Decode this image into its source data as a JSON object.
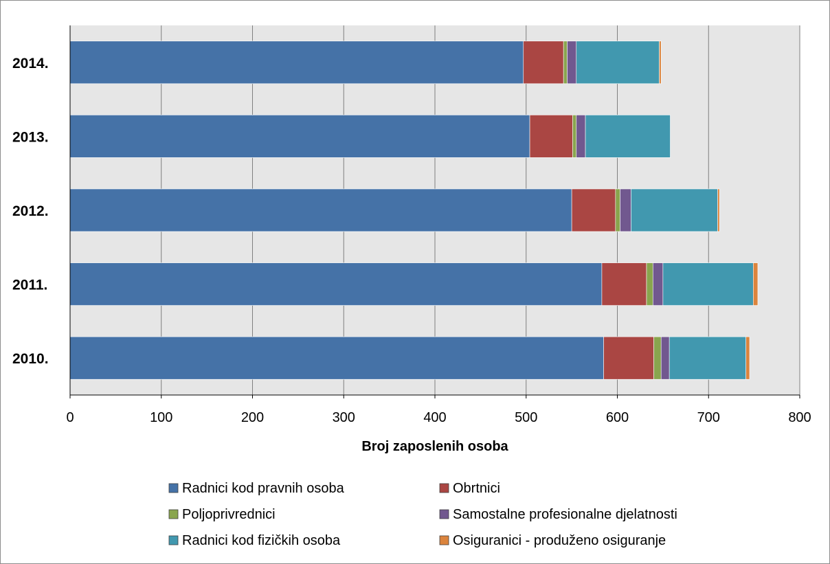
{
  "chart_data": {
    "type": "bar",
    "orientation": "horizontal",
    "stacked": true,
    "categories": [
      "2010.",
      "2011.",
      "2012.",
      "2013.",
      "2014."
    ],
    "series": [
      {
        "name": "Radnici kod pravnih osoba",
        "color": "#4572a7",
        "values": [
          585,
          583,
          550,
          504,
          497
        ]
      },
      {
        "name": "Obrtnici",
        "color": "#aa4643",
        "values": [
          55,
          49,
          48,
          47,
          44
        ]
      },
      {
        "name": "Poljoprivrednici",
        "color": "#89a54e",
        "values": [
          8,
          7,
          5,
          4,
          4
        ]
      },
      {
        "name": "Samostalne profesionalne djelatnosti",
        "color": "#71588f",
        "values": [
          9,
          11,
          12,
          10,
          10
        ]
      },
      {
        "name": "Radnici kod fizičkih osoba",
        "color": "#4198af",
        "values": [
          84,
          99,
          95,
          93,
          91
        ]
      },
      {
        "name": "Osiguranici - produženo osiguranje",
        "color": "#db843d",
        "values": [
          4,
          5,
          2,
          0,
          2
        ]
      }
    ],
    "x_ticks": [
      "0",
      "100",
      "200",
      "300",
      "400",
      "500",
      "600",
      "700",
      "800"
    ],
    "xlim": [
      0,
      800
    ],
    "xlabel": "Broj zaposlenih osoba",
    "ylabel": "",
    "title": "",
    "grid": true,
    "legend_position": "bottom"
  }
}
